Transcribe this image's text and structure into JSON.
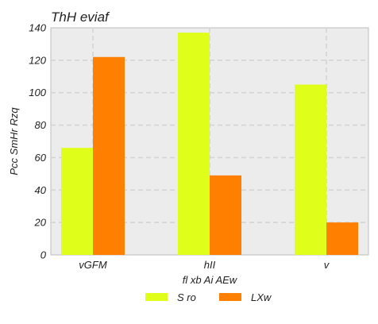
{
  "chart_data": {
    "type": "bar",
    "title": "ThH eviaf",
    "xlabel": "fl xb Ai AEw",
    "ylabel": "Pcc SmHr Rzq",
    "categories": [
      "vGFM",
      "hII",
      "v"
    ],
    "series": [
      {
        "name": "S ro",
        "values": [
          66,
          137,
          105
        ],
        "color": "#dfff1a"
      },
      {
        "name": "LXw",
        "values": [
          122,
          49,
          20
        ],
        "color": "#ff7f00"
      }
    ],
    "ylim": [
      0,
      140
    ],
    "yticks": [
      0,
      20,
      40,
      60,
      80,
      100,
      120,
      140
    ],
    "grid": true,
    "legend_position": "bottom-center"
  }
}
